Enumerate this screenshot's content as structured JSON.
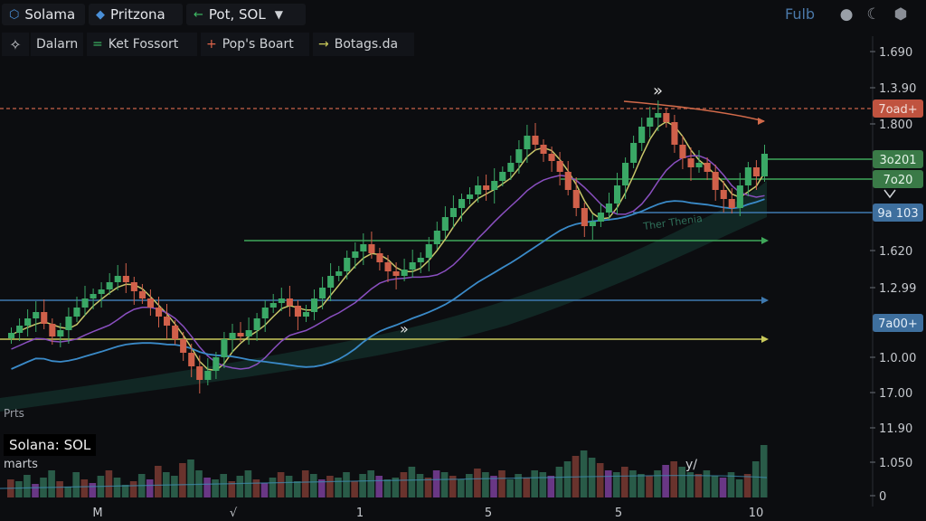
{
  "header": {
    "tabs": [
      {
        "label": "Solama",
        "icon": "logo-icon"
      },
      {
        "label": "Pritzona",
        "icon": "coin-icon"
      },
      {
        "label": "Pot, SOL",
        "icon": "arrow-left-icon"
      }
    ],
    "right_label": "Fulb",
    "icons": [
      "lightbulb-icon",
      "moon-icon",
      "cube-icon"
    ]
  },
  "legend": {
    "items": [
      {
        "label": "Dalarn",
        "marker": "",
        "color": "#cfd2d6"
      },
      {
        "label": "Ket Fossort",
        "marker": "=",
        "color": "#3fbf66"
      },
      {
        "label": "Pop's Boart",
        "marker": "+",
        "color": "#e0654a"
      },
      {
        "label": "Botags.da",
        "marker": "→",
        "color": "#c9c95a"
      }
    ]
  },
  "symbol_label": "Solana: SOL",
  "panel_label": "marts",
  "price_label": "Prts",
  "chart_data": {
    "type": "candlestick",
    "y_ticks": [
      "1.690",
      "1.3.90",
      "1.800",
      "1.620",
      "1.2.99",
      "1.0.00",
      "17.00",
      "11.90",
      "1.050",
      "0"
    ],
    "x_ticks": [
      "M",
      "√",
      "1",
      "5",
      "5",
      "10"
    ],
    "price_badges": [
      {
        "label": "7oad+",
        "color": "#c0533f",
        "text_color": "#f3ddd8"
      },
      {
        "label": "3o201",
        "color": "#3a7a47",
        "text_color": "#e6f5e9"
      },
      {
        "label": "7o20",
        "color": "#3a7a47",
        "text_color": "#e6f5e9"
      },
      {
        "label": "9a 103",
        "color": "#3e6f9e",
        "text_color": "#e4eef8"
      },
      {
        "label": "7a00+",
        "color": "#3e6f9e",
        "text_color": "#e4eef8"
      }
    ],
    "annotations": [
      "»",
      "»",
      "y/"
    ],
    "watermark": "Ther Thenia",
    "candles_close": [
      368,
      360,
      352,
      345,
      358,
      372,
      365,
      350,
      340,
      330,
      325,
      320,
      312,
      305,
      312,
      322,
      330,
      340,
      350,
      360,
      375,
      390,
      405,
      420,
      410,
      395,
      375,
      368,
      372,
      365,
      352,
      340,
      335,
      330,
      338,
      350,
      345,
      330,
      318,
      305,
      300,
      285,
      278,
      270,
      280,
      290,
      300,
      305,
      298,
      290,
      285,
      270,
      255,
      240,
      230,
      220,
      215,
      205,
      210,
      200,
      190,
      180,
      165,
      150,
      160,
      170,
      178,
      190,
      210,
      230,
      250,
      245,
      235,
      225,
      205,
      180,
      158,
      140,
      130,
      125,
      135,
      160,
      175,
      185,
      180,
      190,
      210,
      220,
      230,
      205,
      185,
      195,
      170
    ],
    "volume": [
      20,
      18,
      25,
      15,
      22,
      30,
      18,
      12,
      28,
      20,
      16,
      24,
      30,
      22,
      14,
      18,
      26,
      20,
      35,
      28,
      24,
      38,
      42,
      30,
      22,
      20,
      26,
      18,
      24,
      30,
      20,
      16,
      22,
      28,
      24,
      18,
      30,
      26,
      20,
      24,
      22,
      28,
      18,
      26,
      30,
      24,
      20,
      22,
      28,
      34,
      26,
      22,
      30,
      28,
      24,
      20,
      26,
      32,
      28,
      24,
      30,
      20,
      26,
      22,
      30,
      28,
      24,
      34,
      40,
      46,
      52,
      44,
      38,
      30,
      28,
      34,
      30,
      26,
      24,
      30,
      36,
      40,
      34,
      28,
      26,
      30,
      24,
      22,
      28,
      20,
      26,
      40,
      58
    ]
  }
}
